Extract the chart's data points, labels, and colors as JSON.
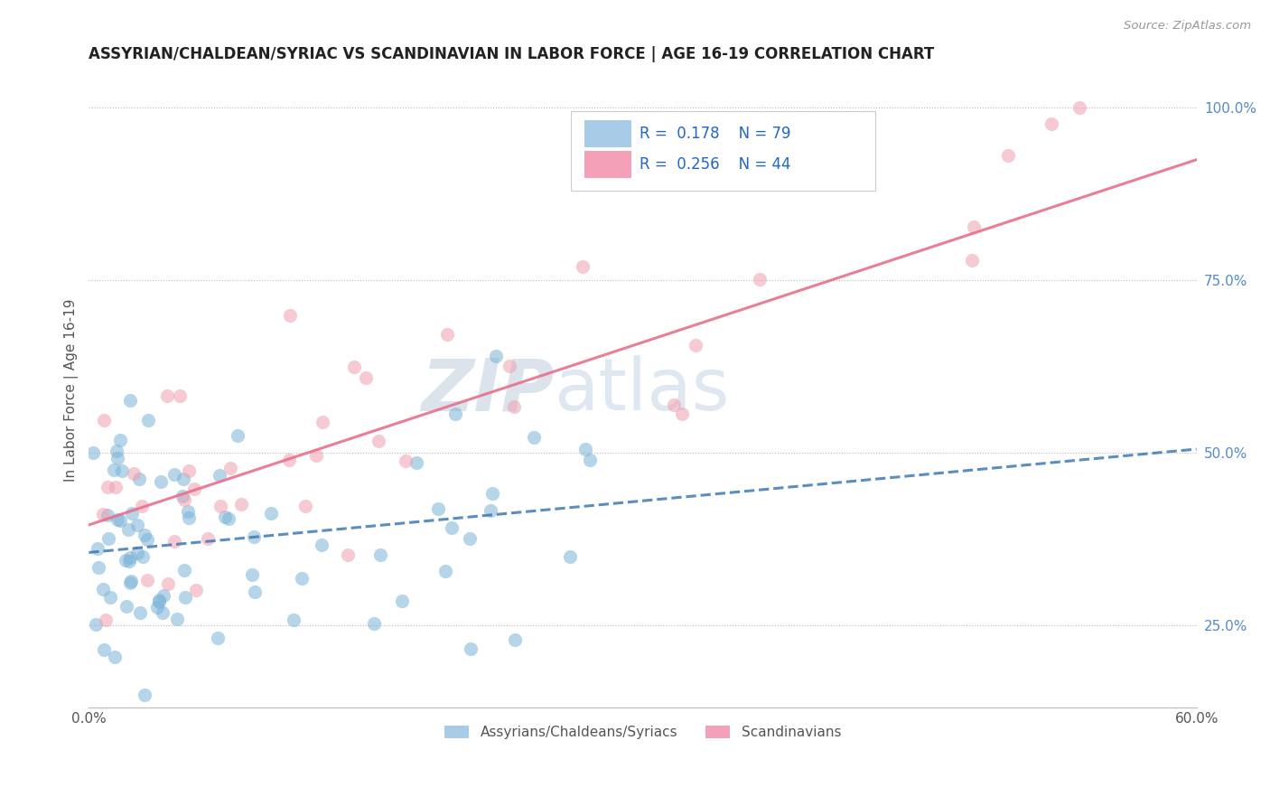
{
  "title": "ASSYRIAN/CHALDEAN/SYRIAC VS SCANDINAVIAN IN LABOR FORCE | AGE 16-19 CORRELATION CHART",
  "source_text": "Source: ZipAtlas.com",
  "ylabel": "In Labor Force | Age 16-19",
  "xlim": [
    0.0,
    0.6
  ],
  "ylim": [
    0.13,
    1.05
  ],
  "xticks": [
    0.0,
    0.1,
    0.2,
    0.3,
    0.4,
    0.5,
    0.6
  ],
  "xticklabels": [
    "0.0%",
    "",
    "",
    "",
    "",
    "",
    "60.0%"
  ],
  "yticks_right": [
    0.25,
    0.5,
    0.75,
    1.0
  ],
  "ytick_labels_right": [
    "25.0%",
    "50.0%",
    "75.0%",
    "100.0%"
  ],
  "blue_color": "#7ab3d8",
  "pink_color": "#f0a0b0",
  "blue_line_color": "#3d7ab5",
  "pink_line_color": "#e8708a",
  "blue_r": 0.178,
  "blue_n": 79,
  "pink_r": 0.256,
  "pink_n": 44,
  "legend_label_blue": "Assyrians/Chaldeans/Syriacs",
  "legend_label_pink": "Scandinavians",
  "watermark_zip": "ZIP",
  "watermark_atlas": "atlas",
  "blue_trend_x0": 0.0,
  "blue_trend_y0": 0.355,
  "blue_trend_x1": 0.6,
  "blue_trend_y1": 0.505,
  "pink_trend_x0": 0.0,
  "pink_trend_y0": 0.395,
  "pink_trend_x1": 0.6,
  "pink_trend_y1": 0.925
}
